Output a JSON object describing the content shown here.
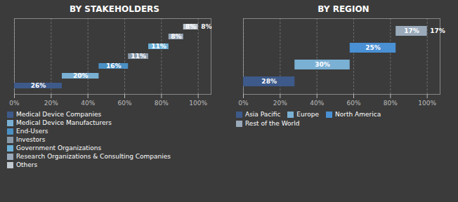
{
  "chart_data": [
    {
      "type": "waterfall",
      "title": "BY STAKEHOLDERS",
      "orientation": "horizontal",
      "categories": [
        "Medical Device Companies",
        "Medical Device Manufacturers",
        "End-Users",
        "Investors",
        "Government Organizations",
        "Research Organizations & Consulting Companies",
        "Others"
      ],
      "values": [
        26,
        20,
        16,
        11,
        11,
        8,
        8
      ],
      "value_labels": [
        "26%",
        "20%",
        "16%",
        "11%",
        "11%",
        "8%",
        "8%"
      ],
      "colors": [
        "#3d5a8a",
        "#7ab0d4",
        "#4a90c4",
        "#8a9aaa",
        "#6ab0d8",
        "#9aaaba",
        "#c0c8d0"
      ],
      "xlim": [
        0,
        107
      ],
      "xticks": [
        {
          "value": 0,
          "label": "0%"
        },
        {
          "value": 20,
          "label": "20%"
        },
        {
          "value": 40,
          "label": "40%"
        },
        {
          "value": 60,
          "label": "60%"
        },
        {
          "value": 80,
          "label": "80%"
        },
        {
          "value": 100,
          "label": "100%"
        }
      ],
      "grid": true,
      "data_labels": true,
      "tick_labels": "x",
      "legend": "bottom"
    },
    {
      "type": "waterfall",
      "title": "BY REGION",
      "orientation": "horizontal",
      "categories": [
        "Asia Pacific",
        "Europe",
        "North America",
        "Rest of the World"
      ],
      "values": [
        28,
        30,
        25,
        17
      ],
      "value_labels": [
        "28%",
        "30%",
        "25%",
        "17%"
      ],
      "colors": [
        "#3d5a8a",
        "#7ab0d4",
        "#4a90d4",
        "#9aaaba"
      ],
      "xlim": [
        0,
        107
      ],
      "xticks": [
        {
          "value": 0,
          "label": "0%"
        },
        {
          "value": 20,
          "label": "20%"
        },
        {
          "value": 40,
          "label": "40%"
        },
        {
          "value": 60,
          "label": "60%"
        },
        {
          "value": 80,
          "label": "80%"
        },
        {
          "value": 100,
          "label": "100%"
        }
      ],
      "grid": true,
      "data_labels": true,
      "tick_labels": "x",
      "legend": "bottom"
    }
  ]
}
